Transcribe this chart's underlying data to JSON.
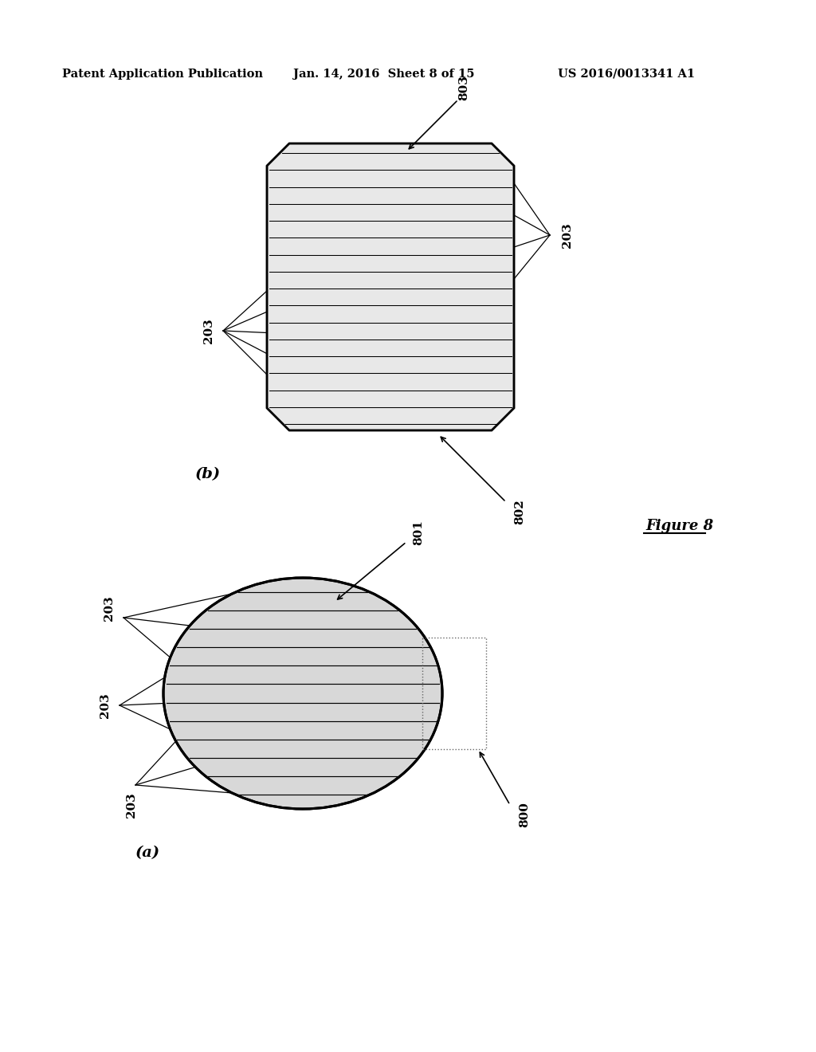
{
  "bg_color": "#ffffff",
  "header_left": "Patent Application Publication",
  "header_mid": "Jan. 14, 2016  Sheet 8 of 15",
  "header_right": "US 2016/0013341 A1",
  "figure_label": "Figure 8",
  "diagram_b_label": "(b)",
  "diagram_a_label": "(a)",
  "label_203": "203",
  "label_800": "800",
  "label_801": "801",
  "label_802": "802",
  "label_803": "803",
  "oct_fill": "#e8e8e8",
  "circ_fill": "#d8d8d8",
  "line_color": "#000000"
}
